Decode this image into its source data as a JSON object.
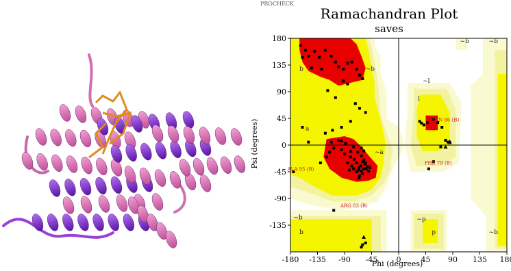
{
  "protein_image": {
    "description_icon": "protein-ribbon-structure-icon",
    "colors": {
      "helix_pink": "#d874b6",
      "helix_purple": "#8a3ad6",
      "ligand_orange": "#e08a1e"
    }
  },
  "header_fragment": "PROCHECK",
  "chart_data": {
    "type": "scatter",
    "title": "Ramachandran Plot",
    "subtitle": "saves",
    "xlabel": "Phi (degrees)",
    "ylabel": "Psi (degrees)",
    "xlim": [
      -180,
      180
    ],
    "ylim": [
      -180,
      180
    ],
    "xticks": [
      -180,
      -135,
      -90,
      -45,
      0,
      45,
      90,
      135,
      180
    ],
    "yticks": [
      180,
      135,
      90,
      45,
      0,
      -45,
      -90,
      -135
    ],
    "xtick_labels": [
      "-180",
      "-135",
      "-90",
      "-45",
      "0",
      "45",
      "90",
      "135",
      "180"
    ],
    "ytick_labels": [
      "180",
      "135",
      "90",
      "45",
      "0",
      "-45",
      "-90",
      "-135"
    ],
    "colors": {
      "core": "#e80000",
      "allowed": "#f5f500",
      "generous": "#f2f2a0",
      "generous_light": "#fafad0",
      "points": "#000000",
      "annotation": "#cc2222"
    },
    "region_labels": [
      {
        "text": "b",
        "phi": -165,
        "psi": 125
      },
      {
        "text": "a",
        "phi": -155,
        "psi": 25
      },
      {
        "text": "~b",
        "phi": -55,
        "psi": 125
      },
      {
        "text": "~a",
        "phi": -40,
        "psi": -15
      },
      {
        "text": "~l",
        "phi": 40,
        "psi": 105
      },
      {
        "text": "l",
        "phi": 32,
        "psi": 75
      },
      {
        "text": "~b",
        "phi": -175,
        "psi": -125
      },
      {
        "text": "b",
        "phi": -165,
        "psi": -150
      },
      {
        "text": "~p",
        "phi": 30,
        "psi": -128
      },
      {
        "text": "p",
        "phi": 55,
        "psi": -150
      },
      {
        "text": "~b",
        "phi": 102,
        "psi": 172
      },
      {
        "text": "~b",
        "phi": 150,
        "psi": 172
      },
      {
        "text": "~b",
        "phi": 150,
        "psi": -150
      }
    ],
    "annotations": [
      {
        "text": "ASN 86 (B)",
        "phi": 55,
        "psi": 40
      },
      {
        "text": "PHE 78 (B)",
        "phi": 43,
        "psi": -33
      },
      {
        "text": "ALA 95 (B)",
        "phi": -185,
        "psi": -43
      },
      {
        "text": "ARG 83 (B)",
        "phi": -97,
        "psi": -105
      }
    ],
    "points": [
      [
        -163,
        168
      ],
      [
        -155,
        160
      ],
      [
        -150,
        150
      ],
      [
        -140,
        158
      ],
      [
        -132,
        148
      ],
      [
        -122,
        160
      ],
      [
        -112,
        150
      ],
      [
        -105,
        140
      ],
      [
        -100,
        132
      ],
      [
        -92,
        128
      ],
      [
        -85,
        138
      ],
      [
        -78,
        140
      ],
      [
        -70,
        128
      ],
      [
        -65,
        118
      ],
      [
        -60,
        112
      ],
      [
        -92,
        108
      ],
      [
        -85,
        103
      ],
      [
        -118,
        92
      ],
      [
        -105,
        80
      ],
      [
        -128,
        128
      ],
      [
        -145,
        130
      ],
      [
        -160,
        148
      ],
      [
        -72,
        70
      ],
      [
        -65,
        62
      ],
      [
        -55,
        55
      ],
      [
        -80,
        40
      ],
      [
        -95,
        30
      ],
      [
        -110,
        25
      ],
      [
        -122,
        20
      ],
      [
        -112,
        5
      ],
      [
        -100,
        8
      ],
      [
        -88,
        3
      ],
      [
        -75,
        -3
      ],
      [
        -68,
        -12
      ],
      [
        -62,
        -18
      ],
      [
        -58,
        -25
      ],
      [
        -55,
        -30
      ],
      [
        -52,
        -36
      ],
      [
        -58,
        -40
      ],
      [
        -62,
        -44
      ],
      [
        -66,
        -38
      ],
      [
        -70,
        -30
      ],
      [
        -74,
        -24
      ],
      [
        -80,
        -20
      ],
      [
        -85,
        -30
      ],
      [
        -90,
        -15
      ],
      [
        -95,
        -8
      ],
      [
        -60,
        -28
      ],
      [
        -56,
        -32
      ],
      [
        -63,
        -35
      ],
      [
        -67,
        -42
      ],
      [
        -54,
        -40
      ],
      [
        -50,
        -44
      ],
      [
        -48,
        -38
      ],
      [
        -60,
        -48
      ],
      [
        -65,
        -52
      ],
      [
        -70,
        -45
      ],
      [
        -75,
        -40
      ],
      [
        -78,
        -35
      ],
      [
        -82,
        -42
      ],
      [
        -58,
        -10
      ],
      [
        -62,
        -5
      ],
      [
        -108,
        -5
      ],
      [
        -115,
        -12
      ],
      [
        -120,
        -20
      ],
      [
        -130,
        -30
      ],
      [
        -150,
        5
      ],
      [
        -160,
        30
      ],
      [
        -175,
        -45
      ],
      [
        35,
        40
      ],
      [
        38,
        37
      ],
      [
        42,
        34
      ],
      [
        48,
        38
      ],
      [
        58,
        43
      ],
      [
        65,
        38
      ],
      [
        72,
        30
      ],
      [
        78,
        8
      ],
      [
        82,
        5
      ],
      [
        85,
        4
      ],
      [
        70,
        -3
      ],
      [
        50,
        -40
      ],
      [
        58,
        -28
      ],
      [
        -55,
        -165
      ],
      [
        -60,
        -168
      ],
      [
        -62,
        -172
      ],
      [
        -108,
        -110
      ]
    ],
    "triangles": [
      [
        -95,
        8
      ],
      [
        -80,
        -10
      ],
      [
        -66,
        -55
      ],
      [
        85,
        6
      ],
      [
        78,
        -3
      ],
      [
        -58,
        -155
      ]
    ]
  }
}
